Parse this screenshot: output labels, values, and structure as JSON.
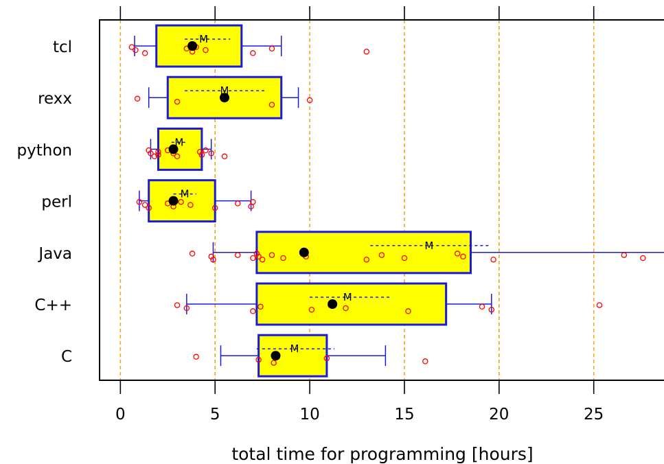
{
  "chart_data": {
    "type": "box",
    "xlabel": "total time for programming [hours]",
    "xlim": [
      -1.1,
      29.0
    ],
    "xticks": [
      0,
      5,
      10,
      15,
      20,
      25
    ],
    "grid": "vertical dashed orange at x ticks",
    "median_marker_label": "M",
    "colors": {
      "box_fill": "#ffff00",
      "box_border": "#1a1adb",
      "points": "#ff0000",
      "mean_dot": "#000000",
      "grid": "#f5a31a",
      "axis": "#000000"
    },
    "categories": [
      "tcl",
      "rexx",
      "python",
      "perl",
      "Java",
      "C++",
      "C"
    ],
    "groups": [
      {
        "name": "tcl",
        "q1": 1.9,
        "median": 3.8,
        "q3": 6.4,
        "whisker_low": 0.75,
        "whisker_high": 8.5,
        "mean": 4.4,
        "mean_band": [
          3.4,
          5.8
        ],
        "points": [
          0.6,
          0.8,
          1.3,
          3.5,
          3.8,
          4.0,
          4.5,
          7.0,
          8.0,
          13.0
        ]
      },
      {
        "name": "rexx",
        "q1": 2.5,
        "median": 5.5,
        "q3": 8.5,
        "whisker_low": 1.5,
        "whisker_high": 9.4,
        "mean": 5.5,
        "mean_band": [
          3.4,
          7.6
        ],
        "points": [
          0.9,
          3.0,
          8.0,
          10.0
        ]
      },
      {
        "name": "python",
        "q1": 2.0,
        "median": 2.8,
        "q3": 4.3,
        "whisker_low": 1.6,
        "whisker_high": 4.8,
        "mean": 3.1,
        "mean_band": [
          2.7,
          3.5
        ],
        "points": [
          1.5,
          1.6,
          1.8,
          2.0,
          2.0,
          2.5,
          2.8,
          3.0,
          4.2,
          4.3,
          4.5,
          4.8,
          5.5
        ]
      },
      {
        "name": "perl",
        "q1": 1.5,
        "median": 2.8,
        "q3": 5.0,
        "whisker_low": 1.0,
        "whisker_high": 6.9,
        "mean": 3.4,
        "mean_band": [
          2.8,
          4.0
        ],
        "points": [
          1.0,
          1.3,
          1.5,
          2.5,
          2.8,
          3.2,
          3.7,
          5.0,
          6.2,
          6.9,
          7.0
        ]
      },
      {
        "name": "Java",
        "q1": 7.2,
        "median": 9.7,
        "q3": 18.5,
        "whisker_low": 4.9,
        "whisker_high": 29.0,
        "mean": 16.3,
        "mean_band": [
          13.2,
          19.5
        ],
        "points": [
          3.8,
          4.8,
          4.9,
          6.2,
          7.0,
          7.2,
          7.3,
          7.5,
          8.0,
          8.6,
          9.7,
          9.8,
          13.0,
          13.8,
          15.0,
          17.8,
          18.1,
          19.7,
          26.6,
          27.6
        ]
      },
      {
        "name": "C++",
        "q1": 7.2,
        "median": 11.2,
        "q3": 17.2,
        "whisker_low": 3.5,
        "whisker_high": 19.6,
        "mean": 12.0,
        "mean_band": [
          10.0,
          14.3
        ],
        "points": [
          3.0,
          3.5,
          7.0,
          7.4,
          10.1,
          11.1,
          11.9,
          15.2,
          19.1,
          19.6,
          25.3
        ]
      },
      {
        "name": "C",
        "q1": 7.3,
        "median": 8.2,
        "q3": 10.9,
        "whisker_low": 5.3,
        "whisker_high": 14.0,
        "mean": 9.2,
        "mean_band": [
          7.2,
          11.3
        ],
        "points": [
          4.0,
          7.3,
          8.1,
          10.9,
          16.1
        ]
      }
    ]
  }
}
